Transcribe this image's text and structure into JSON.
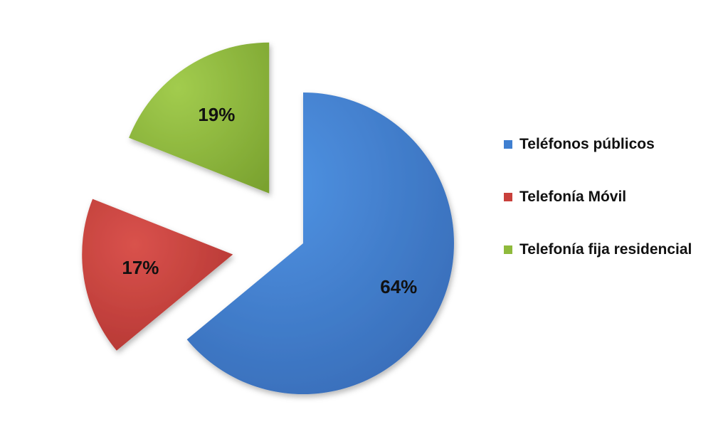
{
  "chart_data": {
    "type": "pie",
    "categories": [
      "Teléfonos públicos",
      "Telefonía Móvil",
      "Telefonía fija residencial"
    ],
    "values": [
      64,
      17,
      19
    ],
    "value_labels": [
      "64%",
      "17%",
      "19%"
    ],
    "colors": [
      "#3f7fd0",
      "#c9403c",
      "#8fba3c"
    ],
    "legend_position": "right",
    "exploded": true
  }
}
